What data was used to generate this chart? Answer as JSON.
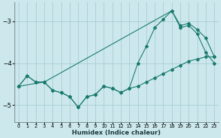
{
  "xlabel": "Humidex (Indice chaleur)",
  "background_color": "#cce8ec",
  "grid_color": "#aacfd4",
  "line_color": "#1a7a6e",
  "xlim": [
    -0.5,
    23.5
  ],
  "ylim": [
    -5.4,
    -2.55
  ],
  "yticks": [
    -5,
    -4,
    -3
  ],
  "xticks": [
    0,
    1,
    2,
    3,
    4,
    5,
    6,
    7,
    8,
    9,
    10,
    11,
    12,
    13,
    14,
    15,
    16,
    17,
    18,
    19,
    20,
    21,
    22,
    23
  ],
  "line1_x": [
    0,
    1,
    2,
    3,
    4,
    5,
    6,
    7,
    8,
    9,
    10,
    11,
    12,
    13,
    14,
    15,
    16,
    17,
    18,
    19,
    20,
    21,
    22,
    23
  ],
  "line1_y": [
    -4.55,
    -4.3,
    -4.45,
    -4.45,
    -4.65,
    -4.7,
    -4.8,
    -5.05,
    -4.8,
    -4.75,
    -4.55,
    -4.6,
    -4.7,
    -4.6,
    -4.55,
    -4.45,
    -4.35,
    -4.25,
    -4.15,
    -4.05,
    -3.95,
    -3.9,
    -3.85,
    -3.85
  ],
  "line2_x": [
    0,
    1,
    2,
    3,
    4,
    5,
    6,
    7,
    8,
    9,
    10,
    11,
    12,
    13,
    14,
    15,
    16,
    17,
    18,
    19,
    20,
    21,
    22,
    23
  ],
  "line2_y": [
    -4.55,
    -4.3,
    -4.45,
    -4.45,
    -4.65,
    -4.7,
    -4.8,
    -5.05,
    -4.8,
    -4.75,
    -4.55,
    -4.6,
    -4.7,
    -4.6,
    -4.0,
    -3.6,
    -3.15,
    -2.95,
    -2.75,
    -3.15,
    -3.1,
    -3.3,
    -3.75,
    -4.0
  ],
  "line3_x": [
    0,
    3,
    18,
    19,
    20,
    21,
    22,
    23
  ],
  "line3_y": [
    -4.55,
    -4.45,
    -2.75,
    -3.1,
    -3.05,
    -3.2,
    -3.4,
    -3.85
  ]
}
